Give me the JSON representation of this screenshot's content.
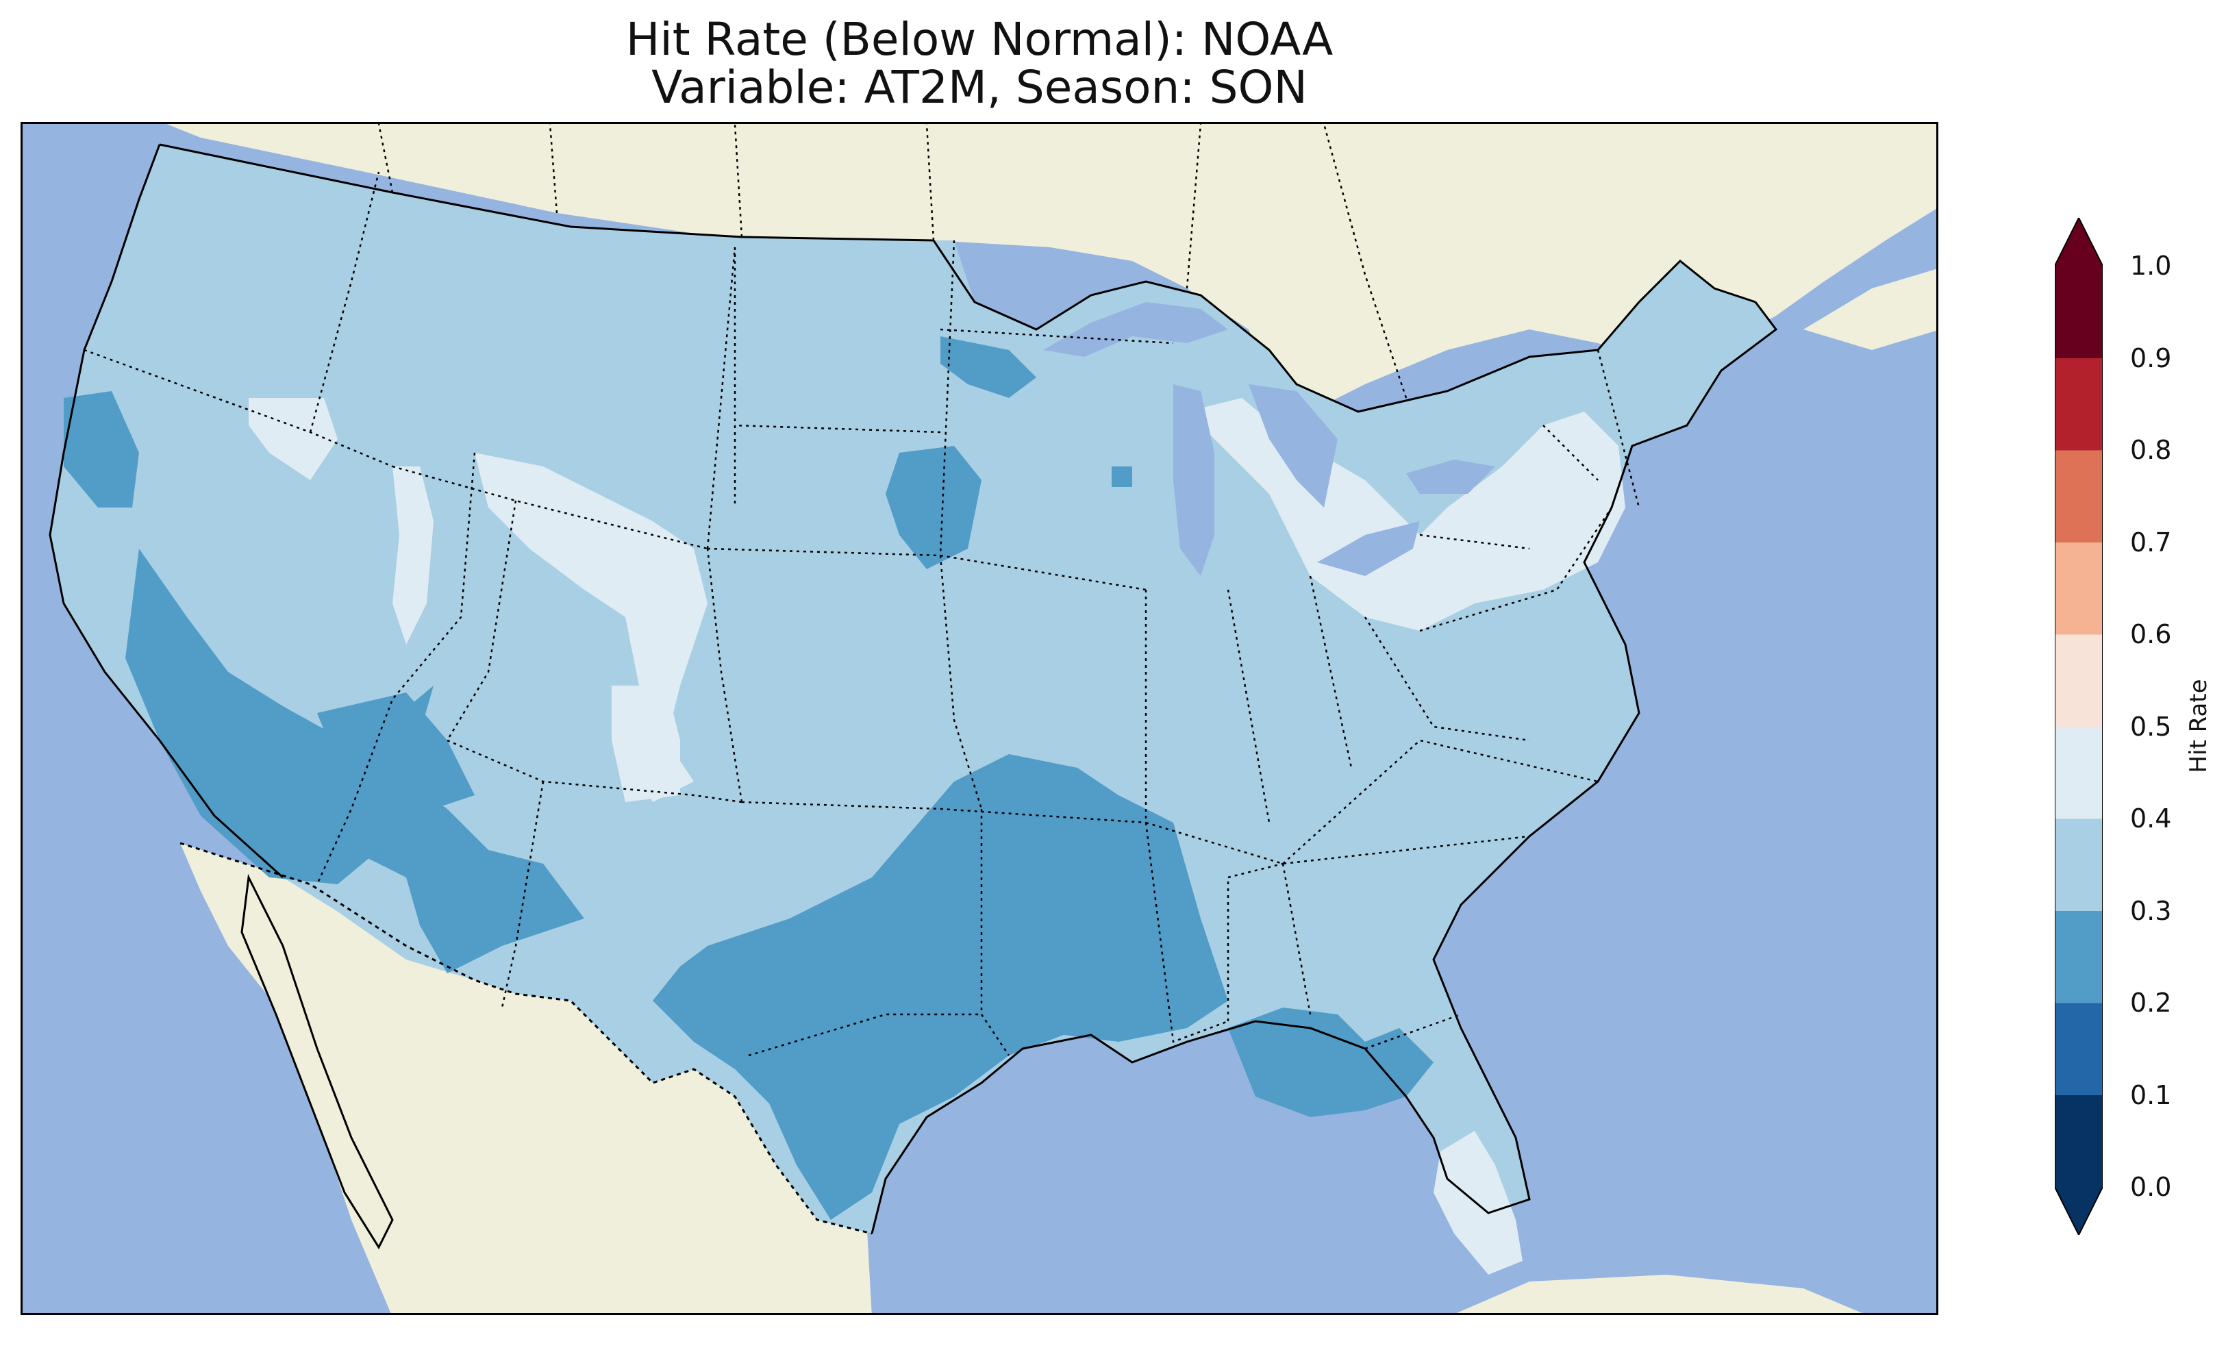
{
  "title": {
    "line1": "Hit Rate (Below Normal): NOAA",
    "line2": "Variable: AT2M, Season: SON"
  },
  "colorbar": {
    "label": "Hit Rate",
    "ticks": [
      "0.0",
      "0.1",
      "0.2",
      "0.3",
      "0.4",
      "0.5",
      "0.6",
      "0.7",
      "0.8",
      "0.9",
      "1.0"
    ],
    "bins": [
      {
        "range": [
          0.0,
          0.1
        ],
        "color": "#063264"
      },
      {
        "range": [
          0.1,
          0.2
        ],
        "color": "#2467a9"
      },
      {
        "range": [
          0.2,
          0.3
        ],
        "color": "#529cc8"
      },
      {
        "range": [
          0.3,
          0.4
        ],
        "color": "#a8cfe4"
      },
      {
        "range": [
          0.4,
          0.5
        ],
        "color": "#e0ecf3"
      },
      {
        "range": [
          0.5,
          0.6
        ],
        "color": "#f7e3d8"
      },
      {
        "range": [
          0.6,
          0.7
        ],
        "color": "#f5b394"
      },
      {
        "range": [
          0.7,
          0.8
        ],
        "color": "#de7256"
      },
      {
        "range": [
          0.8,
          0.9
        ],
        "color": "#b3212c"
      },
      {
        "range": [
          0.9,
          1.0
        ],
        "color": "#67001f"
      }
    ],
    "extend": "both"
  },
  "map": {
    "ocean_color": "#95b4e0",
    "land_color": "#efefdc",
    "lake_color": "#95b4e0",
    "dominant_value_bin": "0.3-0.4",
    "regions": [
      {
        "name": "CONUS base",
        "bin": "0.3-0.4"
      },
      {
        "name": "California / Nevada",
        "bin": "0.2-0.3"
      },
      {
        "name": "Oregon coast",
        "bin": "0.2-0.3"
      },
      {
        "name": "Arizona / New Mexico",
        "bin": "0.2-0.3"
      },
      {
        "name": "Texas / Arkansas / Louisiana",
        "bin": "0.2-0.3"
      },
      {
        "name": "Minnesota / North Dakota",
        "bin": "0.2-0.3"
      },
      {
        "name": "Alabama / Georgia",
        "bin": "0.2-0.3"
      },
      {
        "name": "Montana / Wyoming",
        "bin": "0.4-0.5"
      },
      {
        "name": "Idaho",
        "bin": "0.4-0.5"
      },
      {
        "name": "Colorado",
        "bin": "0.4-0.5"
      },
      {
        "name": "Northeast / Great Lakes",
        "bin": "0.4-0.5"
      },
      {
        "name": "Florida",
        "bin": "0.4-0.5"
      }
    ]
  }
}
